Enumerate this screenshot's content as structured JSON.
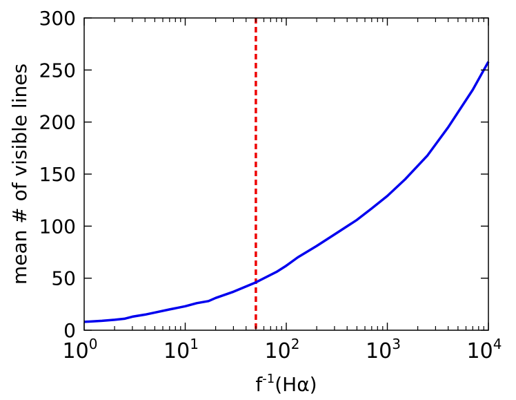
{
  "chart_data": {
    "type": "line",
    "xscale": "log",
    "xlabel_base": "f",
    "xlabel_sup": "-1",
    "xlabel_rest": "(Hα)",
    "ylabel": "mean # of visible lines",
    "xlim": [
      1,
      10000
    ],
    "ylim": [
      0,
      300
    ],
    "x_tick_labels": [
      {
        "value": 1,
        "base": "10",
        "exp": "0"
      },
      {
        "value": 10,
        "base": "10",
        "exp": "1"
      },
      {
        "value": 100,
        "base": "10",
        "exp": "2"
      },
      {
        "value": 1000,
        "base": "10",
        "exp": "3"
      },
      {
        "value": 10000,
        "base": "10",
        "exp": "4"
      }
    ],
    "y_ticks": [
      0,
      50,
      100,
      150,
      200,
      250,
      300
    ],
    "series": [
      {
        "color": "#0000ee",
        "x": [
          1,
          1.5,
          2,
          2.5,
          3,
          4,
          5,
          7,
          10,
          13,
          17,
          20,
          30,
          50,
          80,
          100,
          130,
          200,
          300,
          500,
          700,
          1000,
          1500,
          2500,
          4000,
          7000,
          10000
        ],
        "y": [
          8,
          9,
          10,
          11,
          13,
          15,
          17,
          20,
          23,
          26,
          28,
          31,
          37,
          46,
          56,
          62,
          70,
          81,
          92,
          106,
          117,
          129,
          145,
          168,
          195,
          231,
          258
        ]
      }
    ],
    "vline": {
      "x": 50,
      "color": "#ee0000",
      "style": "dashed"
    },
    "grid": false
  }
}
